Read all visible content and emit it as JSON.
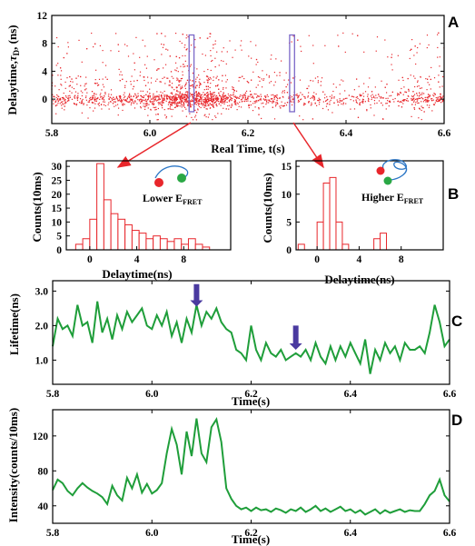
{
  "chart_data": [
    {
      "panel": "A",
      "type": "scatter",
      "xlabel": "Real Time, t(s)",
      "ylabel_html": [
        "Delaytime,",
        "τ",
        "D",
        ", (ns)"
      ],
      "xlim": [
        5.8,
        6.6
      ],
      "ylim": [
        -3.5,
        12
      ],
      "xticks": [
        5.8,
        6.0,
        6.2,
        6.4,
        6.6
      ],
      "xtick_labels": [
        "5.8",
        "6.0",
        "6.2",
        "6.4",
        "6.6"
      ],
      "yticks": [
        0,
        4,
        8,
        12
      ],
      "ytick_labels": [
        "0",
        "4",
        "8",
        "12"
      ],
      "point_color": "#e8262b",
      "density_profile": [
        {
          "x": 5.8,
          "density": 1.0
        },
        {
          "x": 5.95,
          "density": 1.0
        },
        {
          "x": 6.0,
          "density": 1.6
        },
        {
          "x": 6.06,
          "density": 3.0
        },
        {
          "x": 6.13,
          "density": 3.2
        },
        {
          "x": 6.16,
          "density": 1.4
        },
        {
          "x": 6.3,
          "density": 0.6
        },
        {
          "x": 6.5,
          "density": 0.7
        },
        {
          "x": 6.55,
          "density": 1.3
        },
        {
          "x": 6.6,
          "density": 1.0
        }
      ],
      "highlight_windows": [
        {
          "xmin": 6.08,
          "xmax": 6.09,
          "ymin": -1.8,
          "ymax": 9.2
        },
        {
          "xmin": 6.285,
          "xmax": 6.295,
          "ymin": -1.8,
          "ymax": 9.2
        }
      ],
      "highlight_color": "#7b68c8",
      "arrow_color": "#e8262b"
    },
    {
      "panel": "B-left",
      "type": "bar",
      "xlabel": "Delaytime(ns)",
      "ylabel": "Counts(10ms)",
      "xlim": [
        -2,
        12
      ],
      "ylim": [
        0,
        32
      ],
      "bin_width": 0.6,
      "bin_starts": [
        -1.2,
        -0.6,
        0.0,
        0.6,
        1.2,
        1.8,
        2.4,
        3.0,
        3.6,
        4.2,
        4.8,
        5.4,
        6.0,
        6.6,
        7.2,
        7.8,
        8.4,
        9.0,
        9.6
      ],
      "values": [
        2,
        4,
        11,
        31,
        18,
        13,
        11,
        9,
        7,
        6,
        4,
        5,
        4,
        3,
        4,
        2,
        4,
        2,
        1
      ],
      "xticks": [
        0,
        4,
        8
      ],
      "xtick_labels": [
        "0",
        "4",
        "8"
      ],
      "yticks": [
        0,
        5,
        10,
        15,
        20,
        25,
        30
      ],
      "ytick_labels": [
        "0",
        "5",
        "10",
        "15",
        "20",
        "25",
        "30"
      ],
      "bar_color": "#e8262b",
      "annotation": {
        "prefix": "Lower E",
        "sub": "FRET"
      }
    },
    {
      "panel": "B-right",
      "type": "bar",
      "xlabel": "Delaytime(ns)",
      "ylabel": "Counts(10ms)",
      "xlim": [
        -2,
        12
      ],
      "ylim": [
        0,
        16
      ],
      "bin_width": 0.6,
      "bin_starts": [
        -1.8,
        -1.2,
        -0.6,
        0.0,
        0.6,
        1.2,
        1.8,
        2.4,
        3.0,
        3.6,
        4.2,
        4.8,
        5.4,
        6.0,
        6.6
      ],
      "values": [
        1,
        0,
        0,
        5,
        12,
        13,
        5,
        1,
        0,
        0,
        0,
        0,
        2,
        3,
        0
      ],
      "xticks": [
        0,
        4,
        8
      ],
      "xtick_labels": [
        "0",
        "4",
        "8"
      ],
      "yticks": [
        0,
        5,
        10,
        15
      ],
      "ytick_labels": [
        "0",
        "5",
        "10",
        "15"
      ],
      "bar_color": "#e8262b",
      "annotation": {
        "prefix": "Higher E",
        "sub": "FRET"
      }
    },
    {
      "panel": "C",
      "type": "line",
      "xlabel": "Time(s)",
      "ylabel": "Lifetime(ns)",
      "xlim": [
        5.8,
        6.6
      ],
      "ylim": [
        0.3,
        3.3
      ],
      "xticks": [
        5.8,
        6.0,
        6.2,
        6.4,
        6.6
      ],
      "xtick_labels": [
        "5.8",
        "6.0",
        "6.2",
        "6.4",
        "6.6"
      ],
      "yticks": [
        1.0,
        2.0,
        3.0
      ],
      "ytick_labels": [
        "1.0",
        "2.0",
        "3.0"
      ],
      "line_color": "#1f9e3a",
      "x": [
        5.8,
        5.81,
        5.82,
        5.83,
        5.84,
        5.85,
        5.86,
        5.87,
        5.88,
        5.89,
        5.9,
        5.91,
        5.92,
        5.93,
        5.94,
        5.95,
        5.96,
        5.97,
        5.98,
        5.99,
        6.0,
        6.01,
        6.02,
        6.03,
        6.04,
        6.05,
        6.06,
        6.07,
        6.08,
        6.09,
        6.1,
        6.11,
        6.12,
        6.13,
        6.14,
        6.15,
        6.16,
        6.17,
        6.18,
        6.19,
        6.2,
        6.21,
        6.22,
        6.23,
        6.24,
        6.25,
        6.26,
        6.27,
        6.28,
        6.29,
        6.3,
        6.31,
        6.32,
        6.33,
        6.34,
        6.35,
        6.36,
        6.37,
        6.38,
        6.39,
        6.4,
        6.41,
        6.42,
        6.43,
        6.44,
        6.45,
        6.46,
        6.47,
        6.48,
        6.49,
        6.5,
        6.51,
        6.52,
        6.53,
        6.54,
        6.55,
        6.56,
        6.57,
        6.58,
        6.59,
        6.6
      ],
      "values": [
        1.4,
        2.2,
        1.9,
        2.0,
        1.7,
        2.6,
        2.0,
        2.1,
        1.5,
        2.7,
        1.8,
        2.2,
        1.6,
        2.3,
        1.9,
        2.4,
        2.1,
        2.3,
        2.5,
        2.0,
        1.9,
        2.3,
        2.0,
        2.4,
        1.7,
        2.1,
        1.5,
        2.2,
        1.8,
        2.6,
        2.0,
        2.4,
        2.2,
        2.5,
        2.1,
        1.9,
        1.8,
        1.3,
        1.2,
        1.0,
        2.0,
        1.3,
        1.0,
        1.5,
        1.2,
        1.1,
        1.3,
        1.0,
        1.1,
        1.2,
        1.1,
        1.3,
        1.0,
        1.5,
        1.1,
        0.9,
        1.4,
        1.0,
        1.4,
        1.1,
        1.5,
        1.2,
        0.9,
        1.6,
        0.6,
        1.3,
        1.0,
        1.5,
        1.2,
        1.4,
        1.0,
        1.5,
        1.3,
        1.3,
        1.4,
        1.2,
        1.8,
        2.6,
        2.1,
        1.4,
        1.6
      ],
      "markers": [
        {
          "x": 6.09,
          "y_top": 3.2,
          "y_tip": 2.55
        },
        {
          "x": 6.29,
          "y_top": 2.0,
          "y_tip": 1.3
        }
      ],
      "marker_color": "#4a3aa0"
    },
    {
      "panel": "D",
      "type": "line",
      "xlabel": "Time(s)",
      "ylabel": "Intensity(counts/10ms)",
      "xlim": [
        5.8,
        6.6
      ],
      "ylim": [
        20,
        150
      ],
      "xticks": [
        5.8,
        6.0,
        6.2,
        6.4,
        6.6
      ],
      "xtick_labels": [
        "5.8",
        "6.0",
        "6.2",
        "6.4",
        "6.6"
      ],
      "yticks": [
        40,
        80,
        120
      ],
      "ytick_labels": [
        "40",
        "80",
        "120"
      ],
      "line_color": "#1f9e3a",
      "x": [
        5.8,
        5.81,
        5.82,
        5.83,
        5.84,
        5.85,
        5.86,
        5.87,
        5.88,
        5.89,
        5.9,
        5.91,
        5.92,
        5.93,
        5.94,
        5.95,
        5.96,
        5.97,
        5.98,
        5.99,
        6.0,
        6.01,
        6.02,
        6.03,
        6.04,
        6.05,
        6.06,
        6.07,
        6.08,
        6.09,
        6.1,
        6.11,
        6.12,
        6.13,
        6.14,
        6.15,
        6.16,
        6.17,
        6.18,
        6.19,
        6.2,
        6.21,
        6.22,
        6.23,
        6.24,
        6.25,
        6.26,
        6.27,
        6.28,
        6.29,
        6.3,
        6.31,
        6.32,
        6.33,
        6.34,
        6.35,
        6.36,
        6.37,
        6.38,
        6.39,
        6.4,
        6.41,
        6.42,
        6.43,
        6.44,
        6.45,
        6.46,
        6.47,
        6.48,
        6.49,
        6.5,
        6.51,
        6.52,
        6.53,
        6.54,
        6.55,
        6.56,
        6.57,
        6.58,
        6.59,
        6.6
      ],
      "values": [
        58,
        70,
        66,
        57,
        52,
        60,
        66,
        61,
        57,
        54,
        50,
        42,
        63,
        52,
        46,
        72,
        60,
        76,
        55,
        65,
        54,
        58,
        66,
        100,
        128,
        110,
        76,
        125,
        97,
        140,
        100,
        90,
        130,
        139,
        113,
        60,
        48,
        40,
        36,
        38,
        34,
        38,
        35,
        36,
        33,
        37,
        35,
        32,
        36,
        34,
        38,
        33,
        36,
        40,
        34,
        37,
        33,
        36,
        39,
        34,
        36,
        32,
        35,
        30,
        33,
        36,
        31,
        35,
        32,
        34,
        36,
        33,
        35,
        34,
        34,
        42,
        52,
        57,
        70,
        52,
        45
      ]
    }
  ],
  "panel_letters": [
    "A",
    "B",
    "C",
    "D"
  ]
}
